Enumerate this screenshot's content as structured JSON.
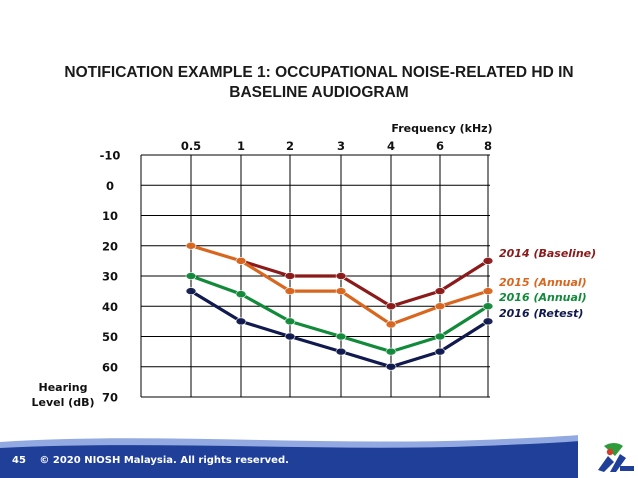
{
  "slide": {
    "title_line1": "NOTIFICATION EXAMPLE 1: OCCUPATIONAL NOISE-RELATED HD IN",
    "title_line2": "BASELINE AUDIOGRAM",
    "page_number": "45",
    "copyright": "© 2020 NIOSH Malaysia. All rights reserved.",
    "colors": {
      "footer": "#1f3f99",
      "footer_light": "#3a63c8",
      "logo_green": "#2e9b3b",
      "logo_red": "#d63b2f"
    }
  },
  "chart_data": {
    "type": "line",
    "x_axis_title": "Frequency (kHz)",
    "y_axis_title_line1": "Hearing",
    "y_axis_title_line2": "Level (dB)",
    "categories": [
      "0.5",
      "1",
      "2",
      "3",
      "4",
      "6",
      "8"
    ],
    "y_ticks": [
      "-10",
      "0",
      "10",
      "20",
      "30",
      "40",
      "50",
      "60",
      "70"
    ],
    "ylim": [
      -10,
      70
    ],
    "y_inverted": true,
    "grid": true,
    "legend_placement": "right, beside line ends",
    "series": [
      {
        "name": "2014 (Baseline)",
        "color": "#8b1a1a",
        "values": [
          null,
          25,
          30,
          30,
          40,
          35,
          25
        ]
      },
      {
        "name": "2015 (Annual)",
        "color": "#d9661f",
        "values": [
          20,
          25,
          35,
          35,
          46,
          40,
          35
        ]
      },
      {
        "name": "2016 (Annual)",
        "color": "#118a3a",
        "values": [
          30,
          36,
          45,
          50,
          55,
          50,
          40
        ]
      },
      {
        "name": "2016 (Retest)",
        "color": "#101a4e",
        "values": [
          35,
          45,
          50,
          55,
          60,
          55,
          45
        ]
      }
    ]
  }
}
